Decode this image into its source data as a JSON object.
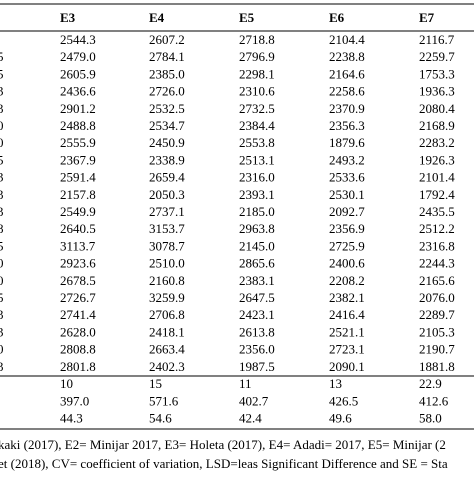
{
  "table": {
    "header": [
      "E3",
      "E4",
      "E5",
      "E6",
      "E7"
    ],
    "rows": [
      [
        null,
        "2544.3",
        "2607.2",
        "2718.8",
        "2104.4",
        "2116.7"
      ],
      [
        "5",
        "2479.0",
        "2784.1",
        "2796.9",
        "2238.8",
        "2259.7"
      ],
      [
        "5",
        "2605.9",
        "2385.0",
        "2298.1",
        "2164.6",
        "1753.3"
      ],
      [
        "3",
        "2436.6",
        "2726.0",
        "2310.6",
        "2258.6",
        "1936.3"
      ],
      [
        "3",
        "2901.2",
        "2532.5",
        "2732.5",
        "2370.9",
        "2080.4"
      ],
      [
        "0",
        "2488.8",
        "2534.7",
        "2384.4",
        "2356.3",
        "2168.9"
      ],
      [
        "0",
        "2555.9",
        "2450.9",
        "2553.8",
        "1879.6",
        "2283.2"
      ],
      [
        "5",
        "2367.9",
        "2338.9",
        "2513.1",
        "2493.2",
        "1926.3"
      ],
      [
        "3",
        "2591.4",
        "2659.4",
        "2316.0",
        "2533.6",
        "2101.4"
      ],
      [
        "3",
        "2157.8",
        "2050.3",
        "2393.1",
        "2530.1",
        "1792.4"
      ],
      [
        "3",
        "2549.9",
        "2737.1",
        "2185.0",
        "2092.7",
        "2435.5"
      ],
      [
        "8",
        "2640.5",
        "3153.7",
        "2963.8",
        "2356.9",
        "2512.2"
      ],
      [
        "5",
        "3113.7",
        "3078.7",
        "2145.0",
        "2725.9",
        "2316.8"
      ],
      [
        "0",
        "2923.6",
        "2510.0",
        "2865.6",
        "2400.6",
        "2244.3"
      ],
      [
        "0",
        "2678.5",
        "2160.8",
        "2383.1",
        "2208.2",
        "2165.6"
      ],
      [
        "5",
        "2726.7",
        "3259.9",
        "2647.5",
        "2382.1",
        "2076.0"
      ],
      [
        "3",
        "2741.4",
        "2706.8",
        "2423.1",
        "2416.4",
        "2289.7"
      ],
      [
        "3",
        "2628.0",
        "2418.1",
        "2613.8",
        "2521.1",
        "2105.3"
      ],
      [
        "0",
        "2808.8",
        "2663.4",
        "2356.0",
        "2723.1",
        "2190.7"
      ],
      [
        "3",
        "2801.8",
        "2402.3",
        "1987.5",
        "2090.1",
        "1881.8"
      ],
      [
        null,
        "10",
        "15",
        "11",
        "13",
        "22.9"
      ],
      [
        null,
        "397.0",
        "571.6",
        "402.7",
        "426.5",
        "412.6"
      ],
      [
        null,
        "44.3",
        "54.6",
        "42.4",
        "49.6",
        "58.0"
      ]
    ]
  },
  "footnote": [
    "kaki (2017), E2= Minijar 2017, E3= Holeta (2017), E4= Adadi= 2017, E5= Minijar (2",
    "et (2018), CV= coefficient of variation, LSD=leas Significant Difference and SE = Sta"
  ]
}
